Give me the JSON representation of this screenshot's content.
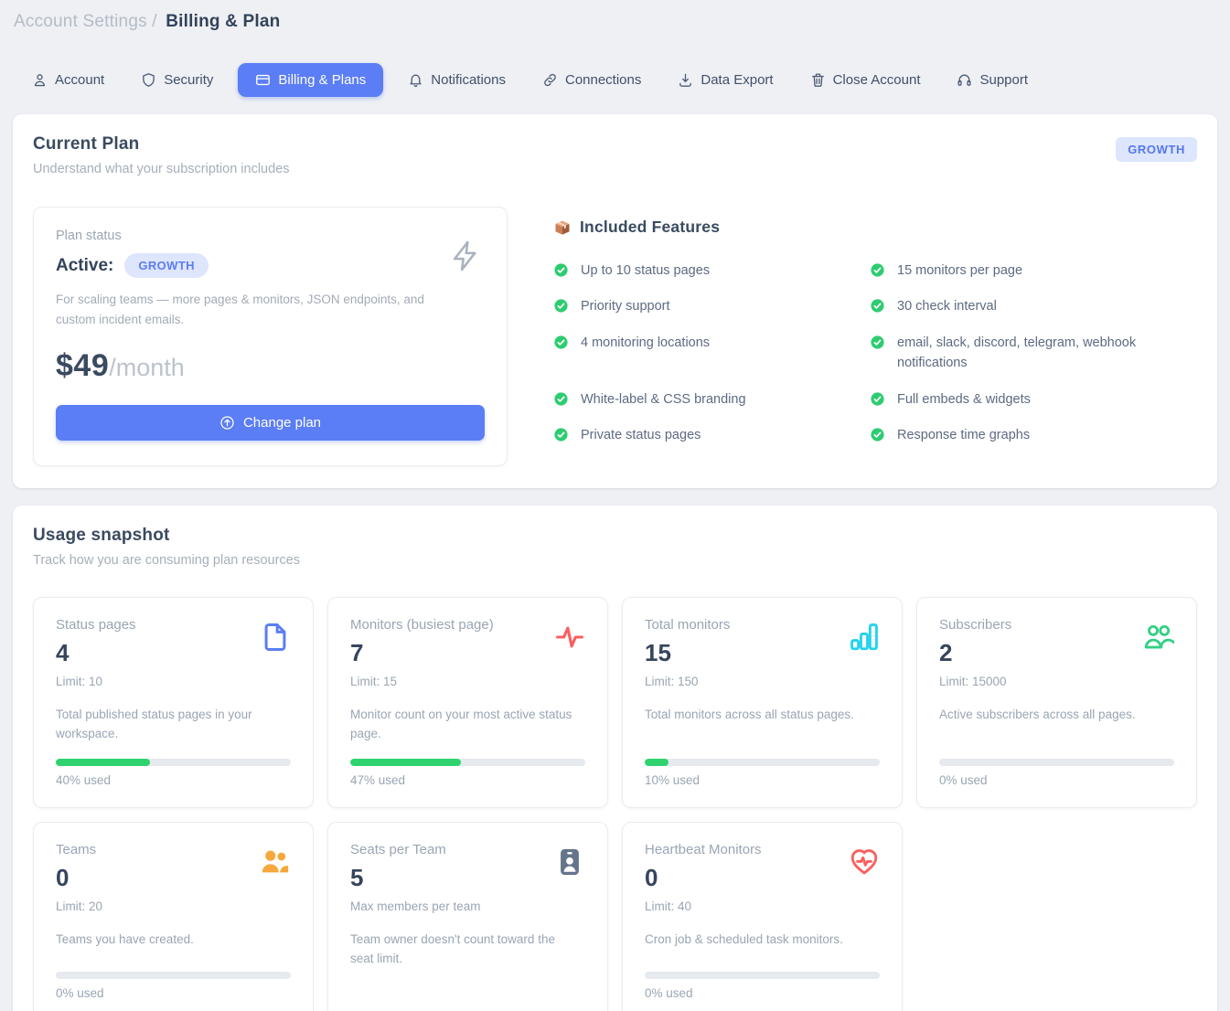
{
  "breadcrumb": {
    "section": "Account Settings /",
    "page": "Billing & Plan"
  },
  "tabs": [
    {
      "label": "Account",
      "icon": "user-icon",
      "active": false
    },
    {
      "label": "Security",
      "icon": "shield-icon",
      "active": false
    },
    {
      "label": "Billing & Plans",
      "icon": "credit-card-icon",
      "active": true
    },
    {
      "label": "Notifications",
      "icon": "bell-icon",
      "active": false
    },
    {
      "label": "Connections",
      "icon": "link-icon",
      "active": false
    },
    {
      "label": "Data Export",
      "icon": "download-icon",
      "active": false
    },
    {
      "label": "Close Account",
      "icon": "trash-icon",
      "active": false
    },
    {
      "label": "Support",
      "icon": "headset-icon",
      "active": false
    }
  ],
  "current_plan": {
    "title": "Current Plan",
    "subtitle": "Understand what your subscription includes",
    "plan_badge": "GROWTH",
    "status_label": "Plan status",
    "status_value": "Active:",
    "status_badge": "GROWTH",
    "description": "For scaling teams — more pages & monitors, JSON endpoints, and custom incident emails.",
    "price": "$49",
    "price_period": "/month",
    "change_plan_label": "Change plan",
    "features_title": "Included Features",
    "features_left": [
      "Up to 10 status pages",
      "Priority support",
      "4 monitoring locations",
      "White-label & CSS branding",
      "Private status pages"
    ],
    "features_right": [
      "15 monitors per page",
      "30 check interval",
      "email, slack, discord, telegram, webhook notifications",
      "Full embeds & widgets",
      "Response time graphs"
    ]
  },
  "usage": {
    "title": "Usage snapshot",
    "subtitle": "Track how you are consuming plan resources",
    "cards": [
      {
        "title": "Status pages",
        "value": "4",
        "sub": "Limit: 10",
        "description": "Total published status pages in your workspace.",
        "percent": 40,
        "percent_label": "40% used",
        "icon": "file-icon",
        "icon_color": "#5b7df5"
      },
      {
        "title": "Monitors (busiest page)",
        "value": "7",
        "sub": "Limit: 15",
        "description": "Monitor count on your most active status page.",
        "percent": 47,
        "percent_label": "47% used",
        "icon": "activity-icon",
        "icon_color": "#fb5f5f"
      },
      {
        "title": "Total monitors",
        "value": "15",
        "sub": "Limit: 150",
        "description": "Total monitors across all status pages.",
        "percent": 10,
        "percent_label": "10% used",
        "icon": "bar-chart-icon",
        "icon_color": "#22d3ee"
      },
      {
        "title": "Subscribers",
        "value": "2",
        "sub": "Limit: 15000",
        "description": "Active subscribers across all pages.",
        "percent": 0,
        "percent_label": "0% used",
        "icon": "users-icon",
        "icon_color": "#32d084"
      },
      {
        "title": "Teams",
        "value": "0",
        "sub": "Limit: 20",
        "description": "Teams you have created.",
        "percent": 0,
        "percent_label": "0% used",
        "icon": "team-icon",
        "icon_color": "#f6a83c"
      },
      {
        "title": "Seats per Team",
        "value": "5",
        "sub": "Max members per team",
        "description": "Team owner doesn't count toward the seat limit.",
        "percent": null,
        "percent_label": null,
        "icon": "id-badge-icon",
        "icon_color": "#64748b"
      },
      {
        "title": "Heartbeat Monitors",
        "value": "0",
        "sub": "Limit: 40",
        "description": "Cron job & scheduled task monitors.",
        "percent": 0,
        "percent_label": "0% used",
        "icon": "heart-pulse-icon",
        "icon_color": "#fb5f5f"
      }
    ]
  },
  "colors": {
    "accent_blue": "#5b7df5",
    "badge_blue_bg": "#dde6fc",
    "check_green": "#2ecc71",
    "progress_green": "#2fd36e",
    "track_gray": "#e6e9ee",
    "heading": "#36455c",
    "muted": "#9aa5b3",
    "page_bg": "#eef0f4"
  }
}
